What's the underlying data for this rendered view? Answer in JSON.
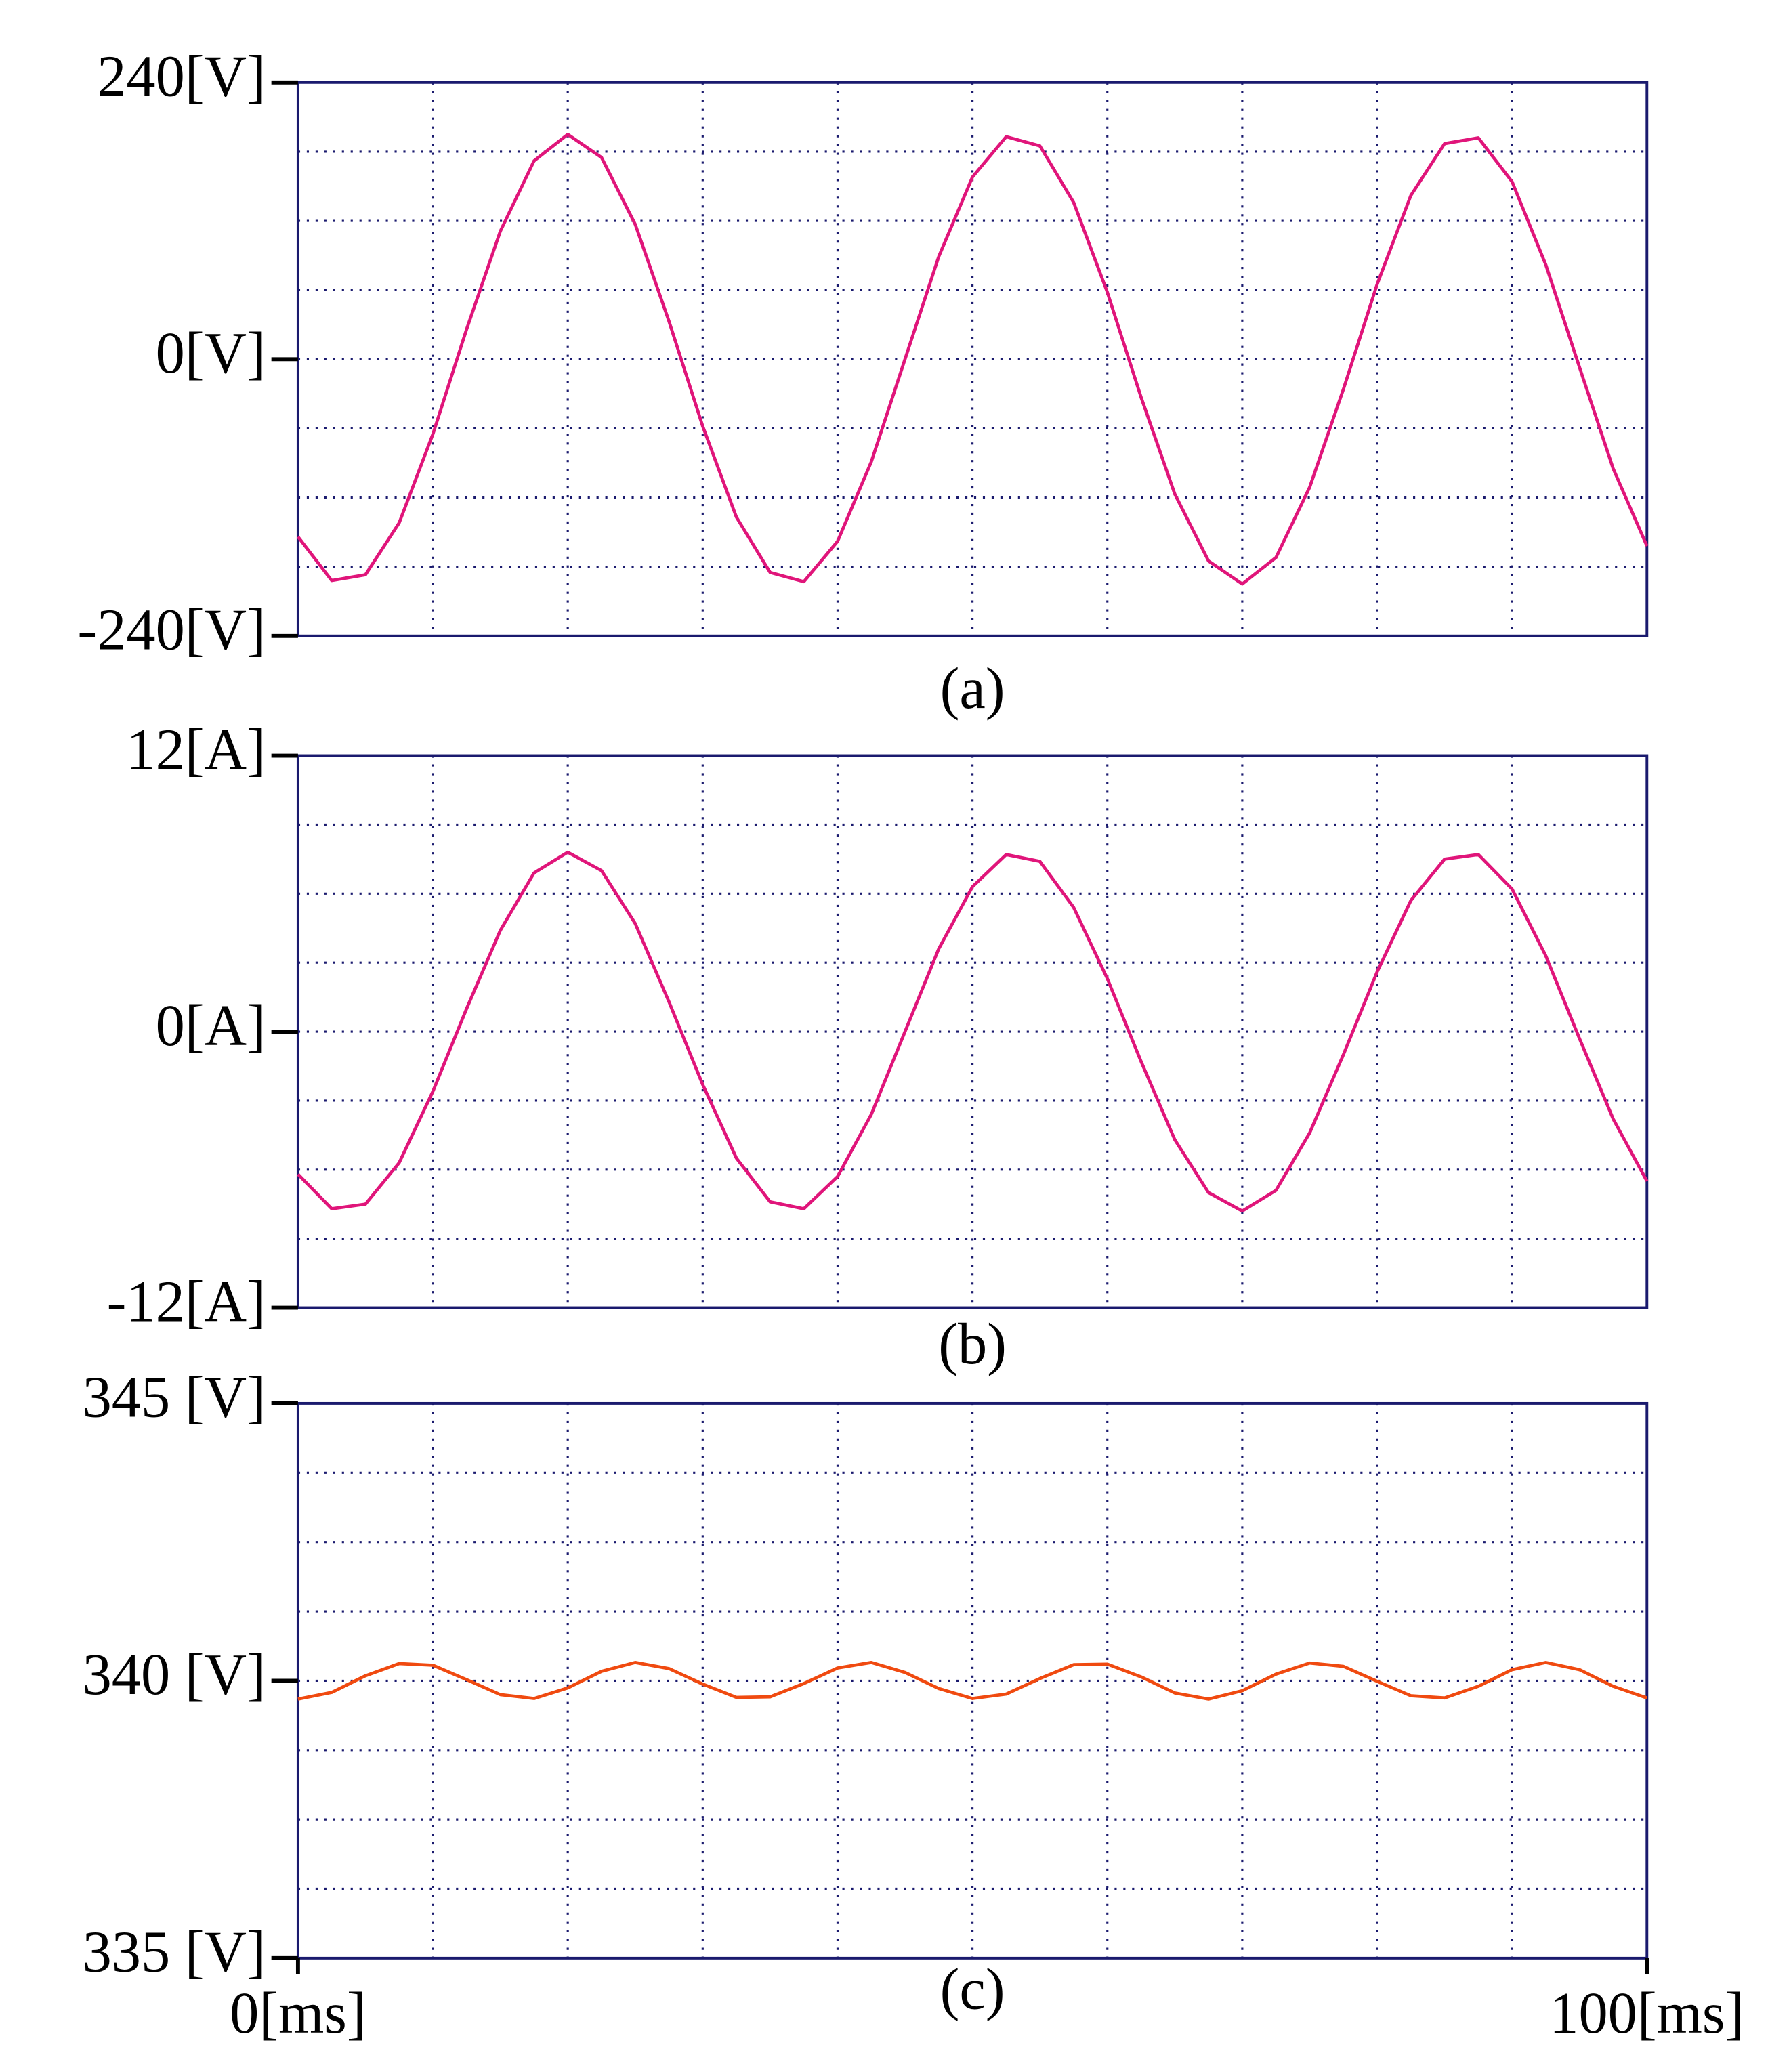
{
  "chart_data": [
    {
      "type": "line",
      "caption": "(a)",
      "x": [
        0,
        2.5,
        5,
        7.5,
        10,
        12.5,
        15,
        17.5,
        20,
        22.5,
        25,
        27.5,
        30,
        32.5,
        35,
        37.5,
        40,
        42.5,
        45,
        47.5,
        50,
        52.5,
        55,
        57.5,
        60,
        62.5,
        65,
        67.5,
        70,
        72.5,
        75,
        77.5,
        80,
        82.5,
        85,
        87.5,
        90,
        92.5,
        95,
        97.5,
        100
      ],
      "series": [
        {
          "color": "#e0157a",
          "values": [
            -154,
            -192,
            -187,
            -142,
            -65,
            26,
            111,
            172,
            195,
            175,
            117,
            33,
            -58,
            -137,
            -185,
            -193,
            -158,
            -89,
            0,
            89,
            158,
            193,
            185,
            136,
            58,
            -33,
            -117,
            -175,
            -195,
            -172,
            -111,
            -26,
            65,
            142,
            187,
            192,
            154,
            82,
            -7,
            -95,
            -162
          ]
        }
      ],
      "xlim": [
        0,
        100
      ],
      "ylim": [
        -240,
        240
      ],
      "yticks": [
        {
          "value": 240,
          "label": "240[V]"
        },
        {
          "value": 0,
          "label": "0[V]"
        },
        {
          "value": -240,
          "label": "-240[V]"
        }
      ],
      "xgrid": [
        10,
        20,
        30,
        40,
        50,
        60,
        70,
        80,
        90
      ],
      "ygrid": [
        -180,
        -120,
        -60,
        0,
        60,
        120,
        180
      ]
    },
    {
      "type": "line",
      "caption": "(b)",
      "x": [
        0,
        2.5,
        5,
        7.5,
        10,
        12.5,
        15,
        17.5,
        20,
        22.5,
        25,
        27.5,
        30,
        32.5,
        35,
        37.5,
        40,
        42.5,
        45,
        47.5,
        50,
        52.5,
        55,
        57.5,
        60,
        62.5,
        65,
        67.5,
        70,
        72.5,
        75,
        77.5,
        80,
        82.5,
        85,
        87.5,
        90,
        92.5,
        95,
        97.5,
        100
      ],
      "series": [
        {
          "color": "#e0157a",
          "values": [
            -6.2,
            -7.7,
            -7.5,
            -5.7,
            -2.6,
            1.0,
            4.4,
            6.9,
            7.8,
            7.0,
            4.7,
            1.3,
            -2.3,
            -5.5,
            -7.4,
            -7.7,
            -6.3,
            -3.6,
            0,
            3.6,
            6.3,
            7.7,
            7.4,
            5.4,
            2.3,
            -1.3,
            -4.7,
            -7.0,
            -7.8,
            -6.9,
            -4.4,
            -1.0,
            2.6,
            5.7,
            7.5,
            7.7,
            6.2,
            3.3,
            -0.3,
            -3.8,
            -6.5
          ]
        }
      ],
      "xlim": [
        0,
        100
      ],
      "ylim": [
        -12,
        12
      ],
      "yticks": [
        {
          "value": 12,
          "label": "12[A]"
        },
        {
          "value": 0,
          "label": "0[A]"
        },
        {
          "value": -12,
          "label": "-12[A]"
        }
      ],
      "xgrid": [
        10,
        20,
        30,
        40,
        50,
        60,
        70,
        80,
        90
      ],
      "ygrid": [
        -9,
        -6,
        -3,
        0,
        3,
        6,
        9
      ]
    },
    {
      "type": "line",
      "caption": "(c)",
      "x": [
        0,
        2.5,
        5,
        7.5,
        10,
        12.5,
        15,
        17.5,
        20,
        22.5,
        25,
        27.5,
        30,
        32.5,
        35,
        37.5,
        40,
        42.5,
        45,
        47.5,
        50,
        52.5,
        55,
        57.5,
        60,
        62.5,
        65,
        67.5,
        70,
        72.5,
        75,
        77.5,
        80,
        82.5,
        85,
        87.5,
        90,
        92.5,
        95,
        97.5,
        100
      ],
      "series": [
        {
          "color": "#f04a10",
          "values": [
            339.67,
            339.79,
            340.09,
            340.31,
            340.28,
            340.02,
            339.75,
            339.68,
            339.87,
            340.17,
            340.33,
            340.22,
            339.94,
            339.7,
            339.71,
            339.95,
            340.23,
            340.33,
            340.15,
            339.86,
            339.68,
            339.76,
            340.04,
            340.29,
            340.3,
            340.07,
            339.78,
            339.67,
            339.82,
            340.12,
            340.32,
            340.26,
            339.99,
            339.73,
            339.69,
            339.9,
            340.2,
            340.33,
            340.2,
            339.9,
            339.69
          ]
        }
      ],
      "xlim": [
        0,
        100
      ],
      "ylim": [
        335,
        345
      ],
      "yticks": [
        {
          "value": 345,
          "label": "345 [V]"
        },
        {
          "value": 340,
          "label": "340 [V]"
        },
        {
          "value": 335,
          "label": "335 [V]"
        }
      ],
      "xticks": [
        {
          "value": 0,
          "label": "0[ms]"
        },
        {
          "value": 100,
          "label": "100[ms]"
        }
      ],
      "xgrid": [
        10,
        20,
        30,
        40,
        50,
        60,
        70,
        80,
        90
      ],
      "ygrid": [
        336.25,
        337.5,
        338.75,
        340,
        341.25,
        342.5,
        343.75
      ]
    }
  ]
}
